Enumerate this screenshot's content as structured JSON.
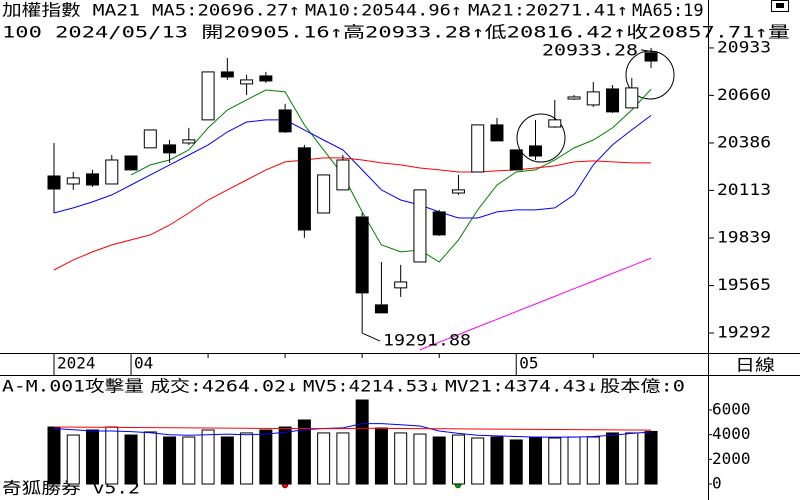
{
  "chart_data": [
    {
      "type": "candlestick",
      "title": "加權指數 MA21",
      "info_line": "100 2024/05/13 開20905.16↑高20933.28↑低20816.42↑收20857.71↑量",
      "categories": [
        "2024",
        null,
        null,
        null,
        "04",
        null,
        null,
        null,
        null,
        null,
        null,
        null,
        null,
        null,
        null,
        null,
        null,
        null,
        null,
        null,
        null,
        null,
        null,
        null,
        "05",
        null,
        null,
        null,
        null,
        null,
        null,
        null
      ],
      "open": [
        20196,
        20150,
        20208,
        20150,
        20311,
        20358,
        20375,
        20386,
        20519,
        20795,
        20726,
        20772,
        20576,
        20358,
        19983,
        20116,
        19960,
        19454,
        19552,
        19701,
        19989,
        20098,
        20219,
        20490,
        20346,
        20369,
        20478,
        20639,
        20605,
        20697,
        20588,
        20905.16
      ],
      "high": [
        20386,
        20219,
        20231,
        20317,
        20311,
        20461,
        20404,
        20473,
        20795,
        20875,
        20778,
        20795,
        20611,
        20375,
        20202,
        20317,
        19983,
        19701,
        19684,
        20116,
        20001,
        20202,
        20490,
        20530,
        20346,
        20519,
        20634,
        20662,
        20737,
        20720,
        20760,
        20933.28
      ],
      "low": [
        19983,
        20116,
        20133,
        20150,
        20231,
        20358,
        20271,
        20375,
        20519,
        20749,
        20662,
        20732,
        20444,
        19840,
        19983,
        20116,
        19291.88,
        19408,
        19500,
        19701,
        19851,
        20087,
        20219,
        20398,
        20231,
        20288,
        20473,
        20634,
        20593,
        20559,
        20588,
        20816.42
      ],
      "close": [
        20121,
        20185,
        20144,
        20288,
        20231,
        20461,
        20329,
        20404,
        20795,
        20766,
        20749,
        20743,
        20450,
        19885,
        20202,
        20288,
        19523,
        19408,
        19586,
        20116,
        19857,
        20116,
        20490,
        20398,
        20231,
        20311,
        20519,
        20651,
        20680,
        20565,
        20703,
        20857.71
      ],
      "up_color": "#ffffff",
      "down_color": "#000000",
      "series": [
        {
          "name": "MA5:20696.27↑",
          "color": "#008000",
          "values": [
            null,
            null,
            null,
            null,
            20202,
            20260,
            20288,
            20346,
            20473,
            20576,
            20634,
            20691,
            20680,
            20490,
            20346,
            20202,
            19989,
            19799,
            19759,
            19770,
            19701,
            19828,
            20001,
            20144,
            20219,
            20231,
            20288,
            20357,
            20403,
            20473,
            20576,
            20696.27
          ]
        },
        {
          "name": "MA10:20544.96↑",
          "color": "#0000ff",
          "values": [
            19983,
            20012,
            20047,
            20087,
            20144,
            20202,
            20260,
            20317,
            20375,
            20449,
            20507,
            20519,
            20519,
            20461,
            20403,
            20346,
            20231,
            20116,
            20058,
            20029,
            19989,
            19954,
            19954,
            19989,
            20001,
            20001,
            20012,
            20087,
            20260,
            20375,
            20461,
            20544.96
          ]
        },
        {
          "name": "MA21:20271.41↑",
          "color": "#ff0000",
          "values": [
            19655,
            19713,
            19759,
            19799,
            19828,
            19857,
            19914,
            19983,
            20058,
            20116,
            20173,
            20231,
            20277,
            20288,
            20300,
            20300,
            20288,
            20271,
            20260,
            20242,
            20231,
            20219,
            20219,
            20225,
            20231,
            20242,
            20254,
            20277,
            20283,
            20277,
            20271,
            20271.41
          ]
        },
        {
          "name": "MA65:19",
          "color": "#ff00ff",
          "values": [
            null,
            null,
            null,
            null,
            null,
            null,
            null,
            null,
            null,
            null,
            null,
            null,
            null,
            null,
            null,
            null,
            null,
            null,
            null,
            19195,
            19239,
            19283,
            19327,
            19371,
            19415,
            19459,
            19503,
            19547,
            19591,
            19635,
            19679,
            19723
          ]
        }
      ],
      "ylim": [
        19177,
        21209
      ],
      "yticks": [
        20933,
        20660,
        20386,
        20113,
        19839,
        19565,
        19292
      ],
      "high_label": 20933.28,
      "low_label": 19291.88
    },
    {
      "type": "bar",
      "title": "A-M.001攻擊量",
      "volume_label": "成交:4264.02↓",
      "volume_label_color": "#008000",
      "values": [
        4620,
        3970,
        4380,
        4620,
        3970,
        4220,
        3810,
        3810,
        4380,
        3810,
        4140,
        4380,
        4620,
        5190,
        4140,
        4140,
        6810,
        4540,
        4140,
        4050,
        3810,
        3970,
        3730,
        3810,
        3570,
        3810,
        3730,
        3810,
        3810,
        4140,
        4140,
        4264.02
      ],
      "series": [
        {
          "name": "MV5:4214.53↓",
          "color": "#0000ff",
          "values": [
            4500,
            4400,
            4300,
            4300,
            4250,
            4150,
            4000,
            3950,
            4000,
            4050,
            4000,
            4050,
            4200,
            4400,
            4500,
            4550,
            4900,
            4900,
            4800,
            4700,
            4300,
            4100,
            3950,
            3900,
            3850,
            3800,
            3800,
            3800,
            3850,
            3950,
            4100,
            4214.53
          ]
        },
        {
          "name": "MV21:4374.43↓",
          "color": "#ff0000",
          "values": [
            4620,
            4610,
            4600,
            4590,
            4580,
            4570,
            4560,
            4550,
            4540,
            4530,
            4520,
            4510,
            4500,
            4500,
            4490,
            4490,
            4520,
            4510,
            4500,
            4490,
            4480,
            4470,
            4460,
            4450,
            4440,
            4430,
            4420,
            4410,
            4400,
            4390,
            4380,
            4374.43
          ]
        }
      ],
      "note": "股本億:0",
      "note_color": "#ff00ff",
      "ylim": [
        -1297,
        8838
      ],
      "yticks": [
        6000,
        4000,
        2000,
        0
      ]
    }
  ],
  "period": "日線",
  "footer": "奇狐勝券 v5.2"
}
